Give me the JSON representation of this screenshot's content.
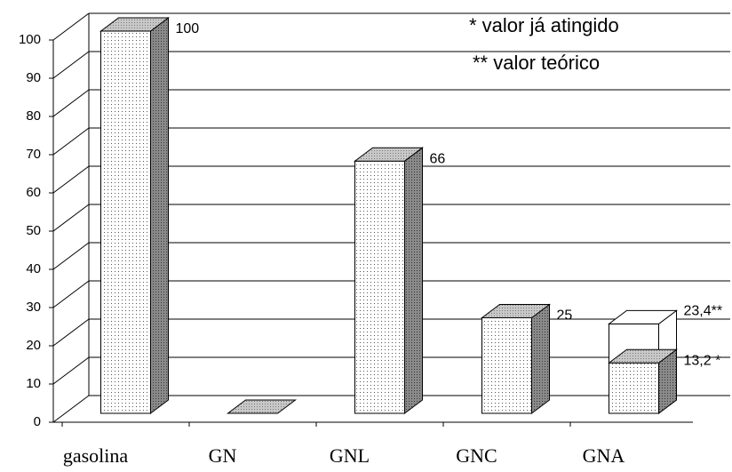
{
  "chart_data": {
    "type": "bar3d",
    "categories": [
      "gasolina",
      "GN",
      "GNL",
      "GNC",
      "GNA"
    ],
    "series": [
      {
        "name": "* valor já atingido",
        "color": "#ffffff",
        "values": [
          100,
          0,
          66,
          25,
          13.2
        ],
        "value_labels": [
          "100",
          null,
          "66",
          "25",
          "13,2 *"
        ]
      },
      {
        "name": "** valor teórico",
        "color": "#ffffff",
        "values": [
          null,
          null,
          null,
          null,
          23.4
        ],
        "value_labels": [
          null,
          null,
          null,
          null,
          "23,4**"
        ]
      }
    ],
    "ylim": [
      0,
      100
    ],
    "yticks": [
      0,
      10,
      20,
      30,
      40,
      50,
      60,
      70,
      80,
      90,
      100
    ],
    "grid": true
  }
}
